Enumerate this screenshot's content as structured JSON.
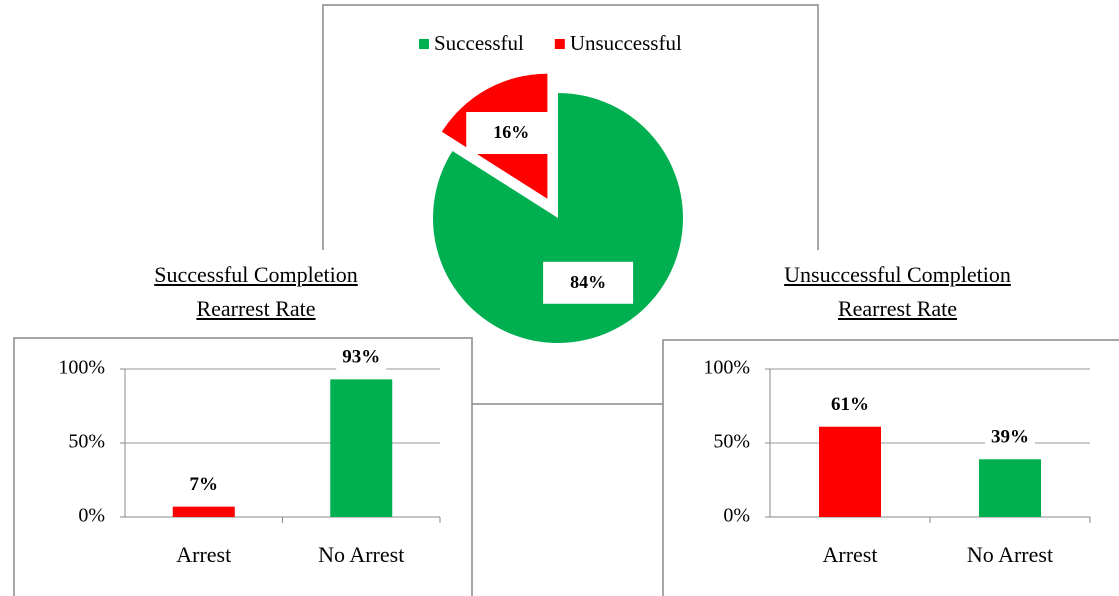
{
  "chart_data": [
    {
      "type": "pie",
      "categories": [
        "Successful",
        "Unsuccessful"
      ],
      "values": [
        84,
        16
      ],
      "value_labels": [
        "84%",
        "16%"
      ],
      "colors": [
        "#00b050",
        "#ff0000"
      ],
      "exploded": 1,
      "legend": "top"
    },
    {
      "type": "bar",
      "title": "Successful Completion Rearrest Rate",
      "categories": [
        "Arrest",
        "No Arrest"
      ],
      "values": [
        7,
        93
      ],
      "value_labels": [
        "7%",
        "93%"
      ],
      "colors": [
        "#ff0000",
        "#00b050"
      ],
      "ylim": [
        0,
        100
      ],
      "yticks": [
        {
          "value": 0,
          "label": "0%"
        },
        {
          "value": 50,
          "label": "50%"
        },
        {
          "value": 100,
          "label": "100%"
        }
      ],
      "grid": true
    },
    {
      "type": "bar",
      "title": "Unsuccessful Completion Rearrest Rate",
      "categories": [
        "Arrest",
        "No Arrest"
      ],
      "values": [
        61,
        39
      ],
      "value_labels": [
        "61%",
        "39%"
      ],
      "colors": [
        "#ff0000",
        "#00b050"
      ],
      "ylim": [
        0,
        100
      ],
      "yticks": [
        {
          "value": 0,
          "label": "0%"
        },
        {
          "value": 50,
          "label": "50%"
        },
        {
          "value": 100,
          "label": "100%"
        }
      ],
      "grid": true
    }
  ]
}
